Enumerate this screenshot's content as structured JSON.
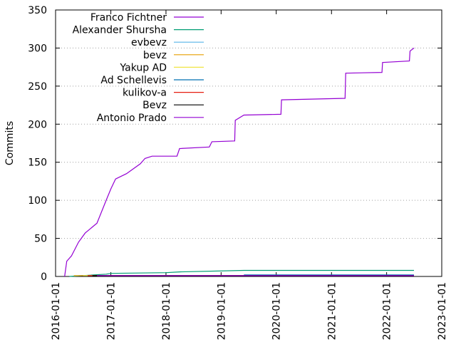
{
  "chart_data": {
    "type": "line",
    "y_label": "Commits",
    "xlim": [
      "2016-01-01",
      "2023-01-01"
    ],
    "xticks": [
      "2016-01-01",
      "2017-01-01",
      "2018-01-01",
      "2019-01-01",
      "2020-01-01",
      "2021-01-01",
      "2022-01-01",
      "2023-01-01"
    ],
    "ylim": [
      0,
      350
    ],
    "yticks": [
      0,
      50,
      100,
      150,
      200,
      250,
      300,
      350
    ],
    "grid": true,
    "legend": "top-left",
    "series": [
      {
        "name": "Franco Fichtner",
        "color": "#9400d3",
        "x": [
          "2016-03-01",
          "2016-03-15",
          "2016-04-15",
          "2016-06-01",
          "2016-07-15",
          "2016-10-01",
          "2016-12-01",
          "2017-01-01",
          "2017-02-01",
          "2017-04-15",
          "2017-07-15",
          "2017-08-15",
          "2017-10-01",
          "2018-03-15",
          "2018-04-01",
          "2018-10-15",
          "2018-11-01",
          "2019-04-01",
          "2019-04-05",
          "2019-06-01",
          "2020-02-01",
          "2020-02-05",
          "2021-04-01",
          "2021-04-05",
          "2021-12-01",
          "2021-12-05",
          "2022-06-01",
          "2022-06-05",
          "2022-07-01"
        ],
        "values": [
          0,
          20,
          27,
          45,
          57,
          70,
          100,
          115,
          128,
          135,
          148,
          155,
          158,
          158,
          168,
          170,
          177,
          178,
          205,
          212,
          213,
          232,
          234,
          267,
          268,
          281,
          283,
          296,
          300
        ]
      },
      {
        "name": "Alexander Shursha",
        "color": "#009e73",
        "x": [
          "2016-04-01",
          "2016-12-01",
          "2017-01-01",
          "2018-01-01",
          "2018-04-01",
          "2019-06-01",
          "2022-07-01"
        ],
        "values": [
          0,
          3,
          4,
          5,
          6,
          8,
          8
        ]
      },
      {
        "name": "evbevz",
        "color": "#56b4e9",
        "x": [
          "2016-06-01",
          "2022-07-01"
        ],
        "values": [
          1,
          1
        ]
      },
      {
        "name": "bevz",
        "color": "#e69f00",
        "x": [
          "2016-05-01",
          "2022-07-01"
        ],
        "values": [
          1,
          1
        ]
      },
      {
        "name": "Yakup AD",
        "color": "#f0e442",
        "x": [
          "2016-07-01",
          "2022-07-01"
        ],
        "values": [
          1,
          1
        ]
      },
      {
        "name": "Ad Schellevis",
        "color": "#0072b2",
        "x": [
          "2019-06-01",
          "2022-07-01"
        ],
        "values": [
          2,
          2
        ]
      },
      {
        "name": "kulikov-a",
        "color": "#e51e10",
        "x": [
          "2016-08-01",
          "2022-07-01"
        ],
        "values": [
          1,
          1
        ]
      },
      {
        "name": "Bevz",
        "color": "#000000",
        "x": [
          "2016-09-01",
          "2022-07-01"
        ],
        "values": [
          1,
          1
        ]
      },
      {
        "name": "Antonio Prado",
        "color": "#9400d3",
        "x": [
          "2016-10-01",
          "2022-07-01"
        ],
        "values": [
          1,
          1
        ]
      }
    ]
  }
}
